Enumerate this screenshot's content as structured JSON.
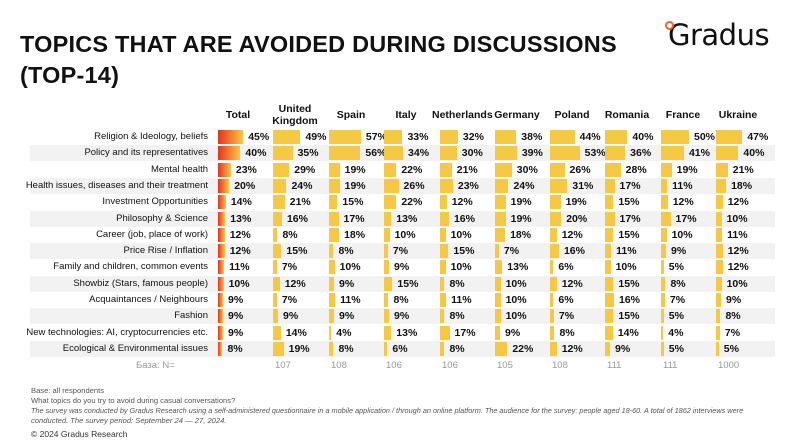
{
  "title_line1": "TOPICS THAT ARE AVOIDED DURING DISCUSSIONS",
  "title_line2": "(TOP-14)",
  "logo": "Gradus",
  "colors": {
    "bar": "#f7c843",
    "total_gradient_start": "#e8321e",
    "row_stripe": "#f2f2f2"
  },
  "chart_data": {
    "type": "table",
    "columns": [
      "Total",
      "United Kingdom",
      "Spain",
      "Italy",
      "Netherlands",
      "Germany",
      "Poland",
      "Romania",
      "France",
      "Ukraine"
    ],
    "rows": [
      {
        "label": "Religion & Ideology, beliefs",
        "values": [
          45,
          49,
          57,
          33,
          32,
          38,
          44,
          40,
          50,
          47
        ]
      },
      {
        "label": "Policy and its representatives",
        "values": [
          40,
          35,
          56,
          34,
          30,
          39,
          53,
          36,
          41,
          40
        ]
      },
      {
        "label": "Mental health",
        "values": [
          23,
          29,
          19,
          22,
          21,
          30,
          26,
          28,
          19,
          21
        ]
      },
      {
        "label": "Health issues, diseases and their treatment",
        "values": [
          20,
          24,
          19,
          26,
          23,
          24,
          31,
          17,
          11,
          18
        ]
      },
      {
        "label": "Investment Opportunities",
        "values": [
          14,
          21,
          15,
          22,
          12,
          19,
          19,
          15,
          12,
          12
        ]
      },
      {
        "label": "Philosophy & Science",
        "values": [
          13,
          16,
          17,
          13,
          16,
          19,
          20,
          17,
          17,
          10
        ]
      },
      {
        "label": "Career (job, place of work)",
        "values": [
          12,
          8,
          18,
          10,
          10,
          18,
          12,
          15,
          10,
          11
        ]
      },
      {
        "label": "Price Rise / Inflation",
        "values": [
          12,
          15,
          8,
          7,
          15,
          7,
          16,
          11,
          9,
          12
        ]
      },
      {
        "label": "Family and children, common events",
        "values": [
          11,
          7,
          10,
          9,
          10,
          13,
          6,
          10,
          5,
          12
        ]
      },
      {
        "label": "Showbiz (Stars, famous people)",
        "values": [
          10,
          12,
          9,
          15,
          8,
          10,
          12,
          15,
          8,
          10
        ]
      },
      {
        "label": "Acquaintances / Neighbours",
        "values": [
          9,
          7,
          11,
          8,
          11,
          10,
          6,
          16,
          7,
          9
        ]
      },
      {
        "label": "Fashion",
        "values": [
          9,
          9,
          9,
          9,
          8,
          10,
          7,
          15,
          5,
          8
        ]
      },
      {
        "label": "New technologies: AI, cryptocurrencies etc.",
        "values": [
          9,
          14,
          4,
          13,
          17,
          9,
          8,
          14,
          4,
          7
        ]
      },
      {
        "label": "Ecological & Environmental issues",
        "values": [
          8,
          19,
          8,
          6,
          8,
          22,
          12,
          9,
          5,
          5
        ]
      }
    ],
    "unit": "%",
    "base_label": "База: N=",
    "base_n": [
      "",
      "107",
      "108",
      "106",
      "106",
      "105",
      "108",
      "111",
      "111",
      "1000"
    ]
  },
  "footer": {
    "base": "Base: all respondents",
    "question": "What topics do you try to avoid during casual conversations?",
    "method1": "The survey was conducted by Gradus Research using a self-administered questionnaire in a mobile application / through an online platform. The audience for the survey: people aged 18-60. A total of 1862 interviews were",
    "method2": "conducted. The survey period: September 24 — 27, 2024.",
    "copyright": "© 2024 Gradus Research"
  }
}
